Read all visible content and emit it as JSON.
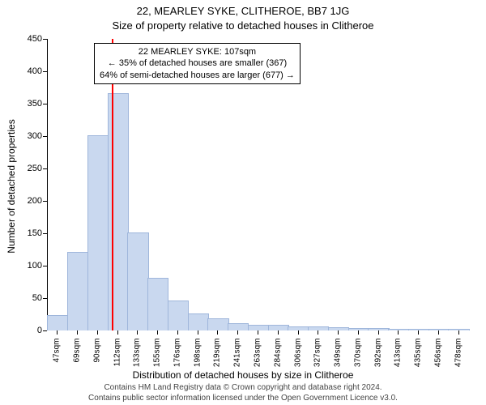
{
  "titles": {
    "address": "22, MEARLEY SYKE, CLITHEROE, BB7 1JG",
    "subtitle": "Size of property relative to detached houses in Clitheroe"
  },
  "axes": {
    "ylabel": "Number of detached properties",
    "xlabel": "Distribution of detached houses by size in Clitheroe",
    "ymin": 0,
    "ymax": 450,
    "ytick_step": 50
  },
  "chart": {
    "type": "histogram",
    "bar_fill": "#c9d8ef",
    "bar_stroke": "#9fb6db",
    "marker_color": "#ff0000",
    "marker_x_sqm": 107,
    "background": "#ffffff",
    "categories_sqm": [
      47,
      69,
      90,
      112,
      133,
      155,
      176,
      198,
      219,
      241,
      263,
      284,
      306,
      327,
      349,
      370,
      392,
      413,
      435,
      456,
      478
    ],
    "x_suffix": "sqm",
    "values": [
      22,
      120,
      300,
      365,
      150,
      80,
      45,
      25,
      18,
      10,
      8,
      7,
      5,
      5,
      4,
      3,
      2,
      1,
      1,
      1,
      1
    ]
  },
  "callout": {
    "line1": "22 MEARLEY SYKE: 107sqm",
    "line2": "← 35% of detached houses are smaller (367)",
    "line3": "64% of semi-detached houses are larger (677) →"
  },
  "attribution": {
    "line1": "Contains HM Land Registry data © Crown copyright and database right 2024.",
    "line2": "Contains public sector information licensed under the Open Government Licence v3.0."
  },
  "style": {
    "title_fontsize": 13,
    "label_fontsize": 12,
    "tick_fontsize": 11,
    "attribution_fontsize": 10
  }
}
